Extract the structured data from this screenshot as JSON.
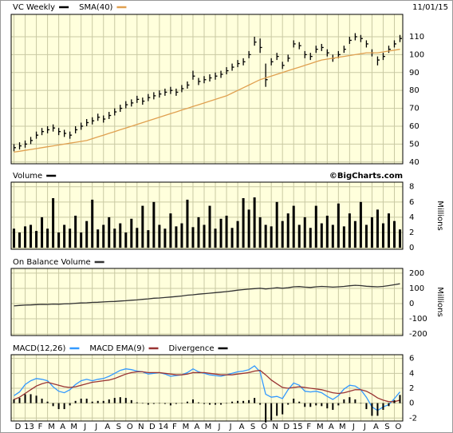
{
  "chart_data": [
    {
      "type": "ohlc",
      "date": "11/01/15",
      "ylim": [
        39,
        122.5
      ],
      "yticks": [
        40,
        50,
        60,
        70,
        80,
        90,
        100,
        110
      ],
      "grid": true,
      "series": [
        {
          "name": "VC Weekly",
          "color": "#000000",
          "high": [
            50,
            51,
            52,
            54,
            57,
            59,
            60,
            61,
            59,
            58,
            57,
            60,
            62,
            64,
            65,
            67,
            66,
            68,
            70,
            72,
            74,
            75,
            77,
            76,
            78,
            79,
            80,
            81,
            82,
            81,
            83,
            85,
            91,
            87,
            88,
            89,
            90,
            91,
            93,
            95,
            97,
            98,
            102,
            110,
            109,
            95,
            98,
            101,
            96,
            100,
            108,
            107,
            102,
            101,
            105,
            106,
            103,
            100,
            102,
            105,
            110,
            112,
            111,
            108,
            103,
            99,
            101,
            105,
            108,
            111
          ],
          "low": [
            46,
            47,
            48,
            50,
            53,
            55,
            56,
            57,
            55,
            54,
            53,
            56,
            58,
            60,
            61,
            63,
            62,
            64,
            66,
            68,
            70,
            71,
            73,
            72,
            74,
            75,
            76,
            77,
            78,
            77,
            79,
            81,
            86,
            83,
            84,
            85,
            86,
            87,
            89,
            91,
            93,
            94,
            98,
            105,
            101,
            82,
            94,
            97,
            92,
            96,
            104,
            103,
            98,
            97,
            101,
            102,
            99,
            96,
            98,
            101,
            106,
            108,
            107,
            104,
            99,
            94,
            97,
            101,
            104,
            107
          ],
          "close": [
            48,
            49,
            50,
            52,
            55,
            57,
            58,
            59,
            57,
            56,
            55,
            58,
            60,
            62,
            63,
            65,
            64,
            66,
            68,
            70,
            72,
            73,
            75,
            74,
            76,
            77,
            78,
            79,
            80,
            79,
            81,
            83,
            88,
            85,
            86,
            87,
            88,
            89,
            91,
            93,
            95,
            96,
            100,
            107,
            104,
            86,
            96,
            99,
            94,
            98,
            106,
            105,
            100,
            99,
            103,
            104,
            101,
            98,
            100,
            103,
            108,
            110,
            109,
            106,
            101,
            97,
            99,
            103,
            106,
            109
          ]
        },
        {
          "name": "SMA(40)",
          "color": "#e0a050",
          "mark": "line",
          "values": [
            45.5,
            46,
            46.5,
            47,
            47.5,
            48,
            48.5,
            49,
            49.5,
            50,
            50.5,
            51,
            51.5,
            52,
            53,
            54,
            55,
            56,
            57,
            58,
            59,
            60,
            61,
            62,
            63,
            64,
            65,
            66,
            67,
            68,
            69,
            70,
            71,
            72,
            73,
            74,
            75,
            76,
            77,
            78.5,
            80,
            81.5,
            83,
            84.5,
            86,
            87,
            88,
            89,
            90,
            91,
            92,
            93,
            94,
            95,
            96,
            97,
            97.5,
            98,
            98.5,
            99,
            99.5,
            100,
            100.5,
            101,
            101,
            101,
            101.5,
            102,
            102.5,
            103
          ]
        }
      ]
    },
    {
      "type": "bar",
      "watermark": "©BigCharts.com",
      "y_label": "Millions",
      "ylim": [
        -0.2,
        8.6
      ],
      "yticks": [
        0,
        2,
        4,
        6,
        8
      ],
      "grid": true,
      "series": [
        {
          "name": "Volume",
          "color": "#000000",
          "mark": "bar",
          "values": [
            2.5,
            2,
            2.8,
            3,
            2.2,
            4,
            2.5,
            6.5,
            2,
            3,
            2.5,
            4.2,
            2,
            3.5,
            6.3,
            2.4,
            3,
            4,
            2.5,
            3.2,
            2,
            3.8,
            2.6,
            5.5,
            2.3,
            6,
            3,
            2.5,
            4.5,
            2.8,
            3.2,
            6.3,
            2.7,
            4,
            3,
            5.5,
            2.5,
            3.8,
            4.2,
            2.6,
            3.5,
            6.5,
            5,
            6.6,
            4,
            3,
            2.8,
            6,
            3.5,
            4.5,
            5.5,
            3,
            4,
            2.6,
            5.5,
            3.2,
            4.2,
            3,
            5.8,
            2.8,
            4.5,
            3.5,
            6,
            3,
            4,
            5,
            3.2,
            4.5,
            3.5,
            2.4
          ]
        }
      ]
    },
    {
      "type": "line",
      "y_label": "Millions",
      "ylim": [
        -210,
        231
      ],
      "yticks": [
        -200,
        -100,
        0,
        100,
        200
      ],
      "grid": true,
      "series": [
        {
          "name": "On Balance Volume",
          "color": "#333333",
          "mark": "line",
          "values": [
            -15,
            -12,
            -10,
            -9,
            -7,
            -5,
            -6,
            -3,
            -4,
            -2,
            -1,
            2,
            4,
            5,
            8,
            9,
            11,
            13,
            14,
            17,
            19,
            22,
            24,
            28,
            31,
            35,
            37,
            40,
            43,
            46,
            50,
            55,
            58,
            62,
            65,
            68,
            72,
            75,
            79,
            83,
            88,
            92,
            95,
            98,
            101,
            96,
            100,
            104,
            101,
            104,
            110,
            112,
            108,
            106,
            110,
            113,
            111,
            108,
            110,
            113,
            117,
            120,
            118,
            114,
            112,
            110,
            113,
            118,
            124,
            130
          ]
        }
      ]
    },
    {
      "type": "macd",
      "ylim": [
        -2.4,
        6.5
      ],
      "yticks": [
        -2,
        0,
        2,
        4,
        6
      ],
      "grid": true,
      "categories": [
        "D",
        null,
        "13",
        null,
        "F",
        null,
        "M",
        null,
        "A",
        null,
        "M",
        null,
        "J",
        null,
        "J",
        null,
        "A",
        null,
        "S",
        null,
        "O",
        null,
        "N",
        null,
        "D",
        null,
        "14",
        null,
        "F",
        null,
        "M",
        null,
        "A",
        null,
        "M",
        null,
        "J",
        null,
        "J",
        null,
        "A",
        null,
        "S",
        null,
        "O",
        null,
        "N",
        null,
        "D",
        null,
        "15",
        null,
        "F",
        null,
        "M",
        null,
        "A",
        null,
        "M",
        null,
        "J",
        null,
        "J",
        null,
        "A",
        null,
        "S",
        null,
        "O",
        null
      ],
      "series": [
        {
          "name": "MACD(12,26)",
          "color": "#3399ff",
          "mark": "line",
          "values": [
            1,
            1.5,
            2.5,
            3,
            3.3,
            3.2,
            3,
            2.2,
            1.6,
            1.4,
            1.8,
            2.5,
            3,
            3.2,
            3,
            3.2,
            3.3,
            3.6,
            4,
            4.4,
            4.6,
            4.5,
            4.3,
            4.2,
            3.9,
            4,
            4.1,
            3.9,
            3.6,
            3.7,
            3.8,
            4.1,
            4.6,
            4.2,
            4,
            3.8,
            3.7,
            3.6,
            3.8,
            4,
            4.2,
            4.3,
            4.5,
            5,
            4.2,
            1.2,
            0.8,
            0.9,
            0.6,
            1.8,
            2.7,
            2.4,
            1.6,
            1.5,
            1.6,
            1.4,
            0.9,
            0.5,
            1,
            1.9,
            2.4,
            2.3,
            1.8,
            0.8,
            -0.5,
            -1,
            -0.5,
            -0.2,
            0.6,
            1.5
          ]
        },
        {
          "name": "MACD EMA(9)",
          "color": "#993333",
          "mark": "line",
          "values": [
            0.5,
            0.8,
            1.3,
            1.8,
            2.3,
            2.6,
            2.8,
            2.6,
            2.4,
            2.2,
            2.1,
            2.2,
            2.4,
            2.6,
            2.8,
            2.9,
            3,
            3.1,
            3.3,
            3.6,
            3.9,
            4.1,
            4.2,
            4.2,
            4.1,
            4.1,
            4.1,
            4,
            3.9,
            3.8,
            3.8,
            3.9,
            4.1,
            4.1,
            4.1,
            4,
            3.9,
            3.8,
            3.8,
            3.8,
            3.9,
            4,
            4.1,
            4.3,
            4.4,
            3.8,
            3.1,
            2.6,
            2.1,
            2,
            2.1,
            2.2,
            2.1,
            2,
            1.9,
            1.8,
            1.6,
            1.4,
            1.3,
            1.4,
            1.6,
            1.8,
            1.8,
            1.6,
            1.2,
            0.7,
            0.4,
            0.2,
            0.2,
            0.4
          ]
        },
        {
          "name": "Divergence",
          "color": "#000000",
          "mark": "bar",
          "values": [
            0.5,
            0.7,
            1.2,
            1.2,
            1,
            0.6,
            0.2,
            -0.4,
            -0.8,
            -0.8,
            -0.3,
            0.3,
            0.6,
            0.6,
            0.2,
            0.3,
            0.3,
            0.5,
            0.7,
            0.8,
            0.7,
            0.4,
            0.1,
            0,
            -0.2,
            -0.1,
            0,
            -0.1,
            -0.3,
            -0.1,
            0,
            0.2,
            0.5,
            0.1,
            -0.1,
            -0.2,
            -0.2,
            -0.2,
            0,
            0.2,
            0.3,
            0.3,
            0.4,
            0.7,
            -0.2,
            -2.6,
            -2.3,
            -1.7,
            -1.5,
            -0.2,
            0.6,
            0.2,
            -0.5,
            -0.5,
            -0.3,
            -0.4,
            -0.7,
            -0.9,
            -0.3,
            0.5,
            0.8,
            0.5,
            0,
            -0.8,
            -1.7,
            -1.7,
            -0.9,
            -0.4,
            0.4,
            1.1
          ]
        }
      ]
    }
  ]
}
